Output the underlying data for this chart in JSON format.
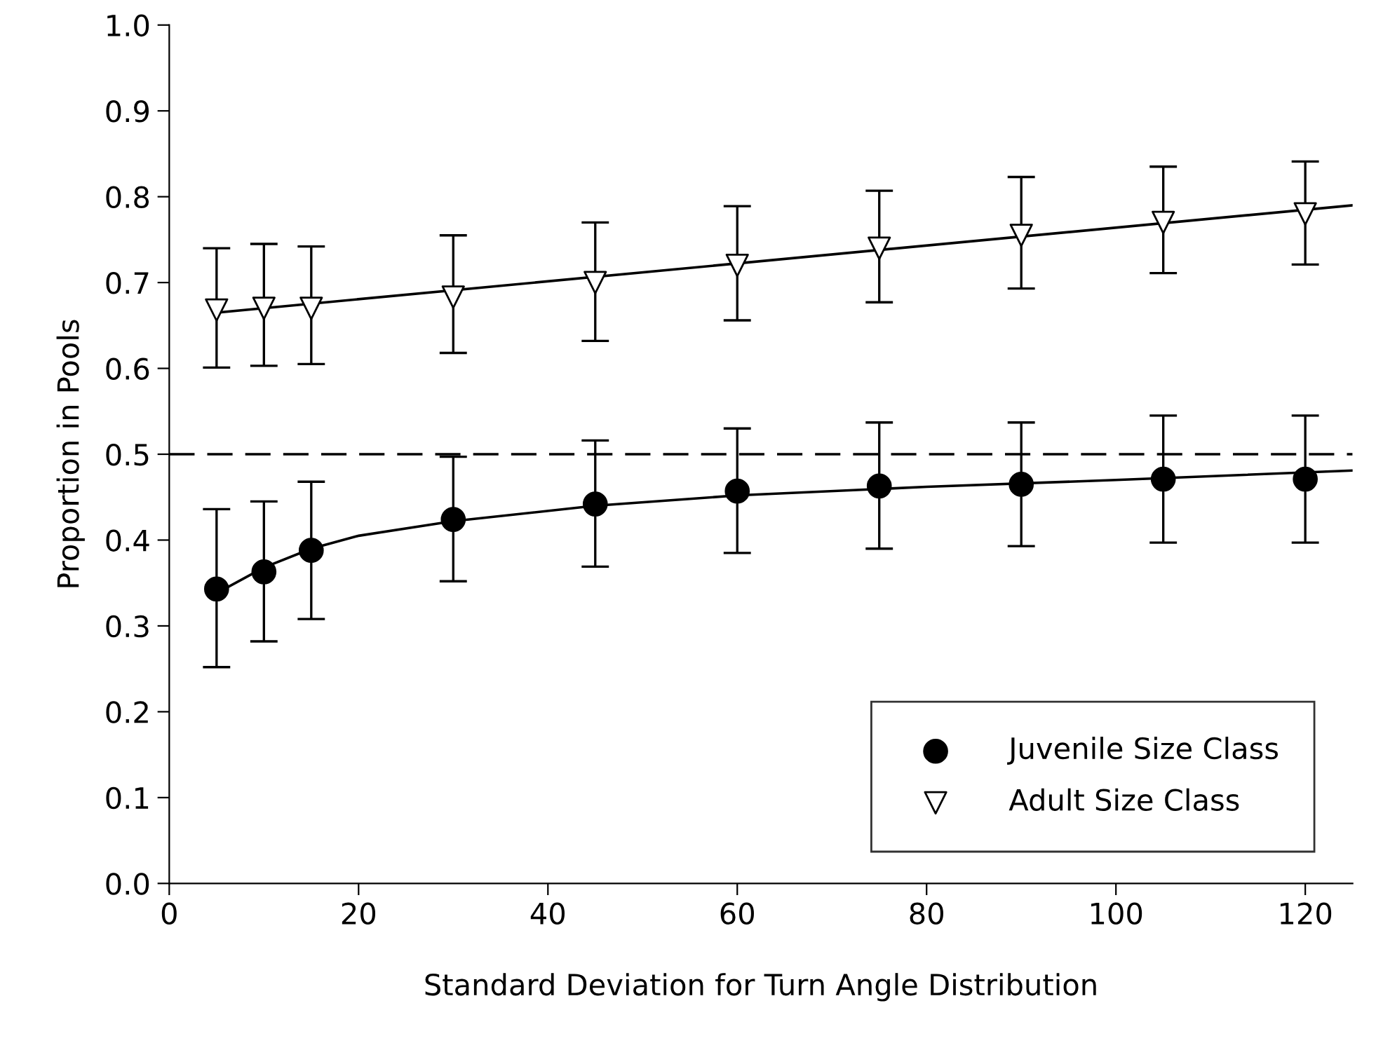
{
  "chart_data": {
    "type": "scatter",
    "xlabel": "Standard Deviation for Turn Angle Distribution",
    "ylabel": "Proportion in Pools",
    "xlim": [
      0,
      125
    ],
    "xticks": [
      0,
      20,
      40,
      60,
      80,
      100,
      120
    ],
    "ylim": [
      0,
      1
    ],
    "yticks": [
      {
        "value": 0,
        "label": "0.0"
      },
      {
        "value": 0.1,
        "label": "0.1"
      },
      {
        "value": 0.2,
        "label": "0.2"
      },
      {
        "value": 0.3,
        "label": "0.3"
      },
      {
        "value": 0.4,
        "label": "0.4"
      },
      {
        "value": 0.5,
        "label": "0.5"
      },
      {
        "value": 0.6,
        "label": "0.6"
      },
      {
        "value": 0.7,
        "label": "0.7"
      },
      {
        "value": 0.8,
        "label": "0.8"
      },
      {
        "value": 0.9,
        "label": "0.9"
      },
      {
        "value": 1,
        "label": "1.0"
      }
    ],
    "grid": false,
    "legend": "bottom right",
    "ref_lines": [
      {
        "axis": "y",
        "value": 0.5,
        "label": null,
        "color": "#000000",
        "line_style": "dashed"
      }
    ],
    "series": [
      {
        "type": "line",
        "color": "#000000",
        "marker": "none",
        "x": [
          5,
          10,
          15,
          20,
          30,
          45,
          60,
          80,
          100,
          125
        ],
        "values": [
          0.338,
          0.368,
          0.39,
          0.405,
          0.422,
          0.44,
          0.452,
          0.462,
          0.47,
          0.481
        ]
      },
      {
        "type": "line",
        "color": "#000000",
        "marker": "none",
        "x": [
          5,
          125
        ],
        "values": [
          0.665,
          0.79
        ]
      },
      {
        "name": "Juvenile Size Class",
        "color": "#000000",
        "marker": "circle",
        "x": [
          5,
          10,
          15,
          30,
          45,
          60,
          75,
          90,
          105,
          120
        ],
        "values": [
          0.343,
          0.363,
          0.388,
          0.424,
          0.442,
          0.457,
          0.463,
          0.465,
          0.471,
          0.471
        ],
        "errors": [
          [
            0.252,
            0.436
          ],
          [
            0.282,
            0.445
          ],
          [
            0.308,
            0.468
          ],
          [
            0.352,
            0.497
          ],
          [
            0.369,
            0.516
          ],
          [
            0.385,
            0.53
          ],
          [
            0.39,
            0.537
          ],
          [
            0.393,
            0.537
          ],
          [
            0.397,
            0.545
          ],
          [
            0.397,
            0.545
          ]
        ]
      },
      {
        "name": "Adult Size Class",
        "color": "#ffffff",
        "marker": "triangle",
        "x": [
          5,
          10,
          15,
          30,
          45,
          60,
          75,
          90,
          105,
          120
        ],
        "values": [
          0.668,
          0.67,
          0.67,
          0.683,
          0.7,
          0.72,
          0.74,
          0.755,
          0.77,
          0.78
        ],
        "errors": [
          [
            0.601,
            0.74
          ],
          [
            0.603,
            0.745
          ],
          [
            0.605,
            0.742
          ],
          [
            0.618,
            0.755
          ],
          [
            0.632,
            0.77
          ],
          [
            0.656,
            0.789
          ],
          [
            0.677,
            0.807
          ],
          [
            0.693,
            0.823
          ],
          [
            0.711,
            0.835
          ],
          [
            0.721,
            0.841
          ]
        ]
      }
    ]
  }
}
